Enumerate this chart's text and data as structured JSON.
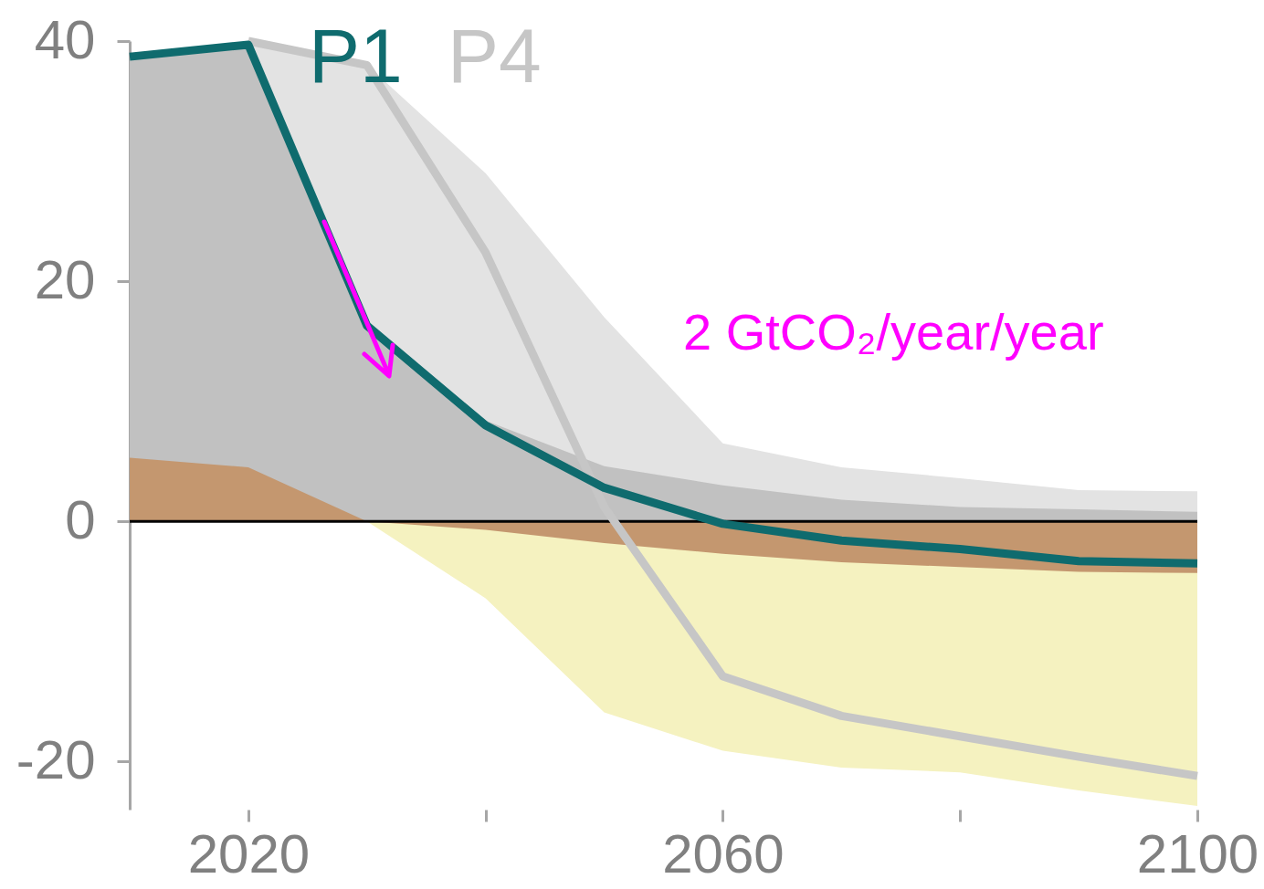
{
  "chart_data": {
    "type": "line",
    "x": [
      2010,
      2020,
      2030,
      2040,
      2050,
      2060,
      2070,
      2080,
      2090,
      2100
    ],
    "xlim": [
      2010,
      2100
    ],
    "xticks": [
      2020,
      {
        "value": 2040,
        "label": null
      },
      2060,
      {
        "value": 2080,
        "label": null
      },
      2100
    ],
    "ylim": [
      -24,
      40
    ],
    "yticks": [
      -20,
      0,
      20,
      40
    ],
    "series": [
      {
        "type": "area",
        "color": "#e3e3e3",
        "values": [
          null,
          40,
          38,
          29.0,
          17.0,
          6.5,
          4.5,
          3.6,
          2.6,
          2.5
        ]
      },
      {
        "type": "area",
        "color": "#c1c1c1",
        "values": [
          38.7,
          39.7,
          16.5,
          8.4,
          4.6,
          3.0,
          1.8,
          1.2,
          1.0,
          0.8
        ]
      },
      {
        "type": "area",
        "color": "#f5f2c0",
        "values": [
          null,
          null,
          0,
          -6.4,
          -15.9,
          -19.1,
          -20.5,
          -20.9,
          -22.4,
          -23.7
        ]
      },
      {
        "type": "area",
        "color": "#c4976f",
        "values": [
          5.3,
          4.5,
          0,
          -0.7,
          -1.8,
          -2.7,
          -3.4,
          -3.8,
          -4.2,
          -4.3
        ]
      },
      {
        "name": "P4",
        "color": "#c6c6c6",
        "values": [
          null,
          40,
          38,
          22.4,
          1.2,
          -12.9,
          -16.2,
          -17.9,
          -19.6,
          -21.2
        ]
      },
      {
        "name": "P1",
        "color": "#0f6b6e",
        "values": [
          38.7,
          39.7,
          16.3,
          8.0,
          2.8,
          -0.2,
          -1.6,
          -2.3,
          -3.3,
          -3.5
        ]
      }
    ],
    "ref_lines": [
      {
        "axis": "y",
        "value": 0,
        "color": "#000000"
      }
    ],
    "annotations": [
      "2 GtCO₂/year/year"
    ]
  }
}
